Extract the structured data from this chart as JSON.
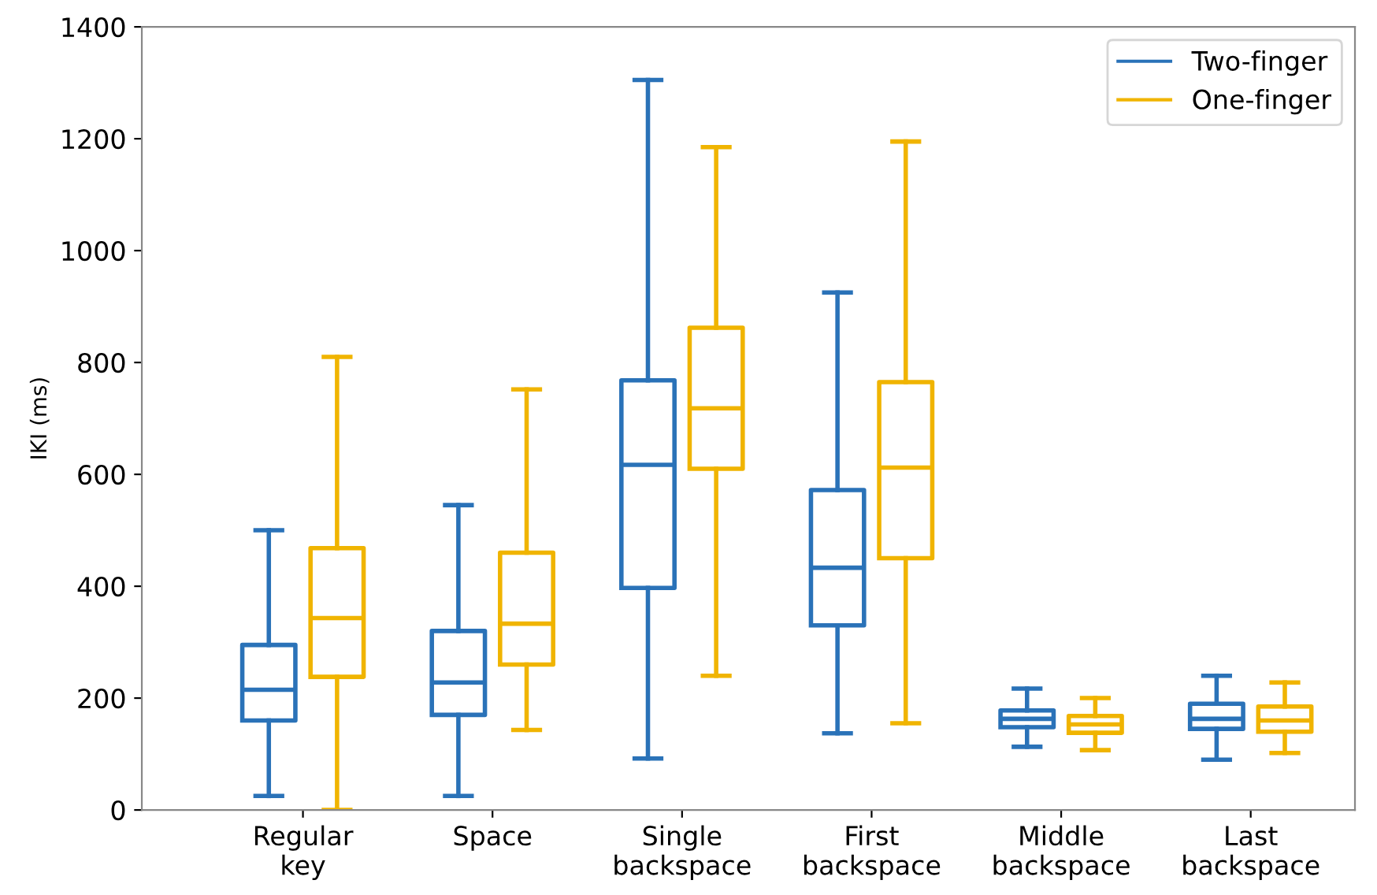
{
  "chart_data": {
    "type": "box",
    "ylabel": "IKI (ms)",
    "categories": [
      "Regular\nkey",
      "Space",
      "Single\nbackspace",
      "First\nbackspace",
      "Middle\nbackspace",
      "Last\nbackspace"
    ],
    "ylim": [
      0,
      1400
    ],
    "yticks": [
      0,
      200,
      400,
      600,
      800,
      1000,
      1200,
      1400
    ],
    "grid": false,
    "legend": "top right",
    "series": [
      {
        "name": "Two-finger",
        "color": "#2a72b8",
        "boxes": [
          {
            "low": 25,
            "q1": 160,
            "median": 215,
            "q3": 295,
            "high": 500
          },
          {
            "low": 25,
            "q1": 170,
            "median": 228,
            "q3": 320,
            "high": 545
          },
          {
            "low": 92,
            "q1": 397,
            "median": 617,
            "q3": 768,
            "high": 1305
          },
          {
            "low": 137,
            "q1": 330,
            "median": 433,
            "q3": 572,
            "high": 925
          },
          {
            "low": 113,
            "q1": 148,
            "median": 163,
            "q3": 178,
            "high": 217
          },
          {
            "low": 90,
            "q1": 145,
            "median": 163,
            "q3": 190,
            "high": 240
          }
        ]
      },
      {
        "name": "One-finger",
        "color": "#f0b400",
        "boxes": [
          {
            "low": 0,
            "q1": 238,
            "median": 343,
            "q3": 468,
            "high": 810
          },
          {
            "low": 143,
            "q1": 260,
            "median": 333,
            "q3": 460,
            "high": 752
          },
          {
            "low": 240,
            "q1": 610,
            "median": 718,
            "q3": 862,
            "high": 1185
          },
          {
            "low": 155,
            "q1": 450,
            "median": 612,
            "q3": 765,
            "high": 1195
          },
          {
            "low": 107,
            "q1": 138,
            "median": 153,
            "q3": 168,
            "high": 200
          },
          {
            "low": 102,
            "q1": 140,
            "median": 160,
            "q3": 185,
            "high": 228
          }
        ]
      }
    ]
  }
}
